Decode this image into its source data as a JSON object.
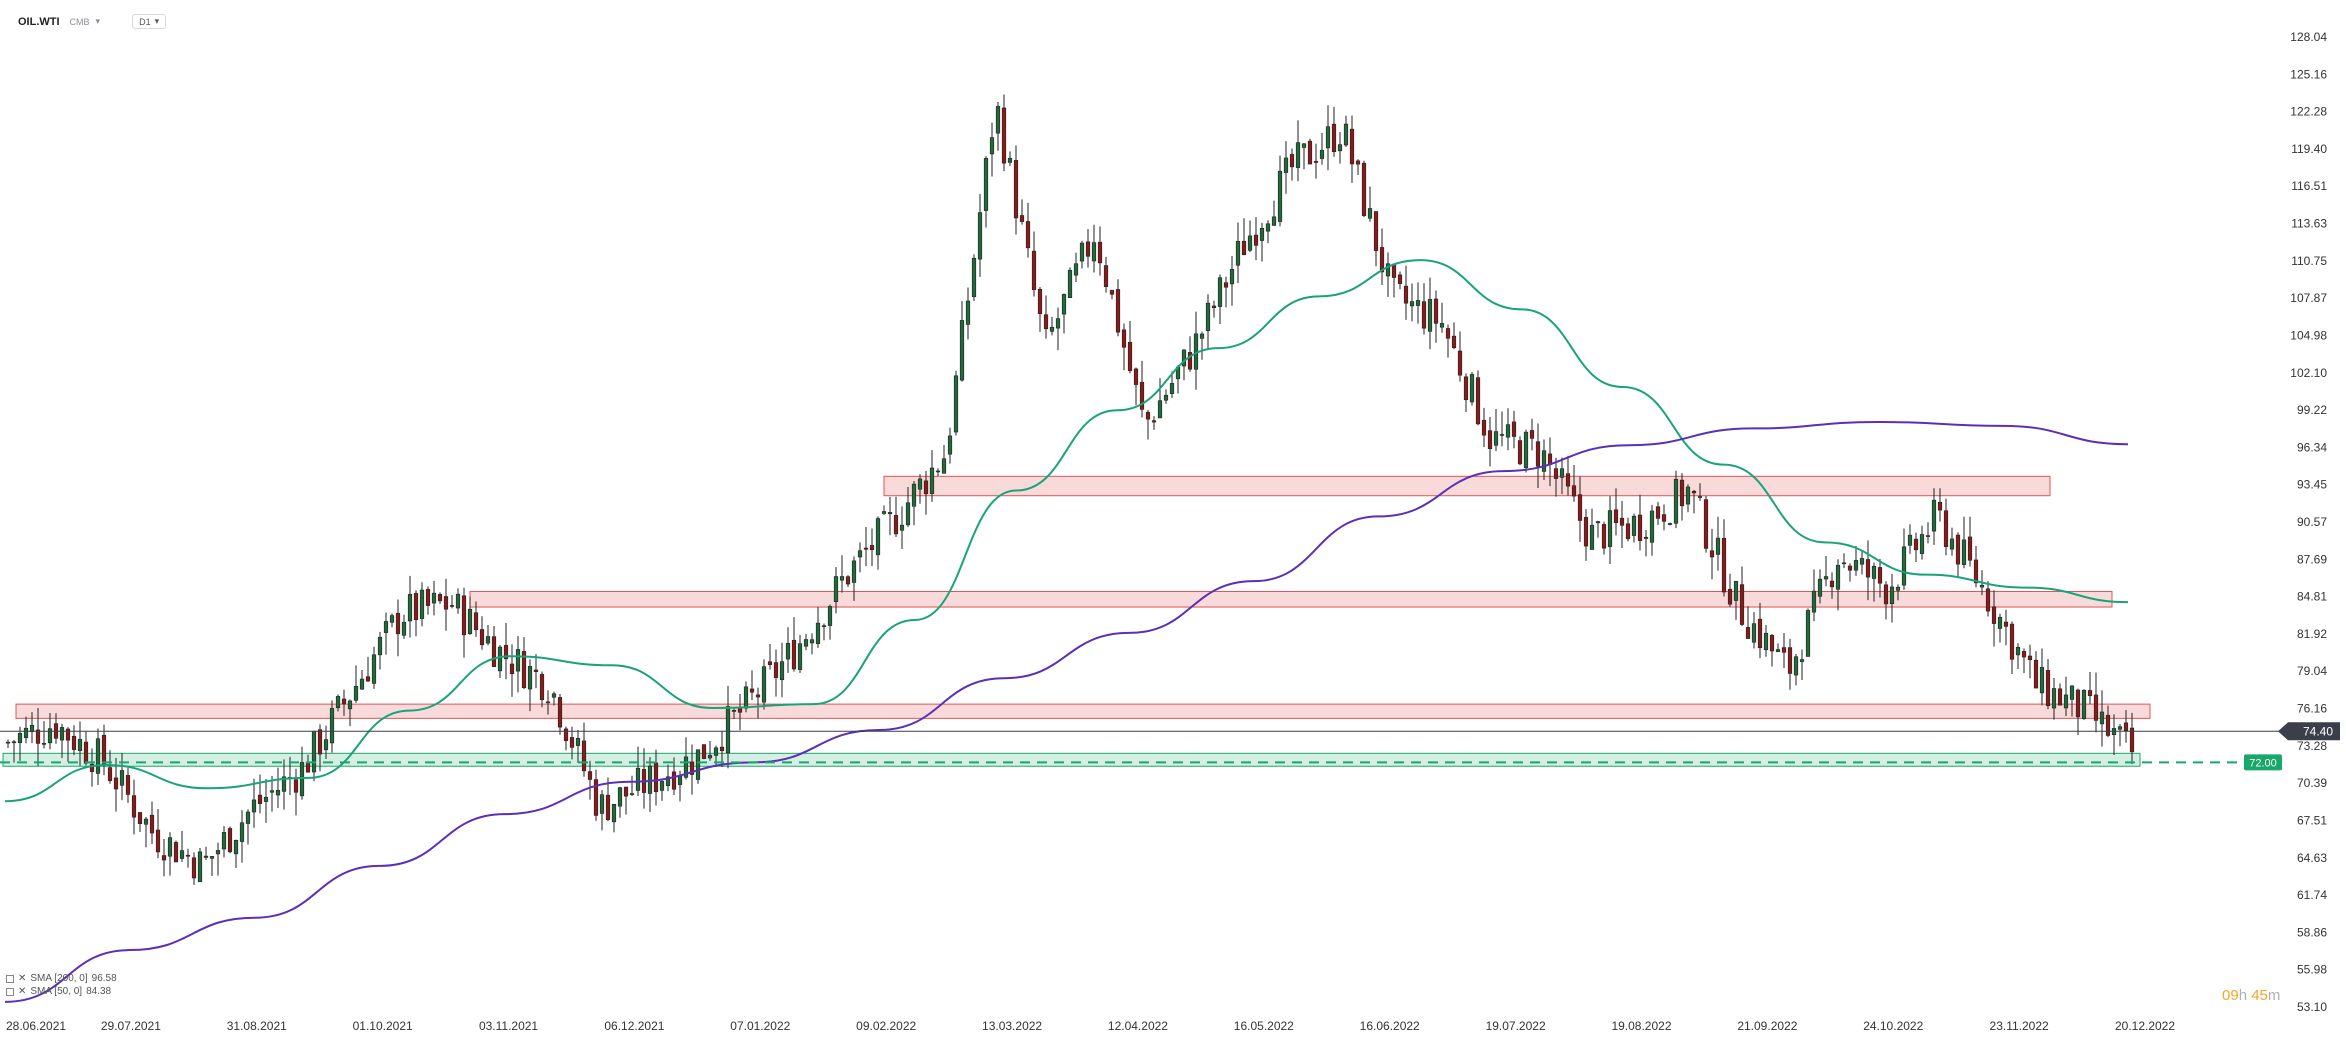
{
  "header": {
    "symbol": "OIL.WTI",
    "source": "CMB",
    "timeframe": "D1"
  },
  "legend": [
    {
      "label": "SMA [200, 0]",
      "value": "96.58",
      "color": "#5b2fb8"
    },
    {
      "label": "SMA [50, 0]",
      "value": "84.38",
      "color": "#1aa37a"
    }
  ],
  "timer": {
    "hours": "09",
    "h": "h",
    "minutes": "45",
    "m": "m"
  },
  "colors": {
    "bull": "#1f6b3a",
    "bear": "#8b1a1a",
    "sma50": "#1aa37a",
    "sma200": "#5b2fb8",
    "resistance": "#e05555",
    "support": "#18a86b",
    "price_tag": "#3a3f4a"
  },
  "chart_data": {
    "type": "candlestick",
    "ylim": [
      53.1,
      131.0
    ],
    "y_ticks": [
      "128.04",
      "125.16",
      "122.28",
      "119.40",
      "116.51",
      "113.63",
      "110.75",
      "107.87",
      "104.98",
      "102.10",
      "99.22",
      "96.34",
      "93.45",
      "90.57",
      "87.69",
      "84.81",
      "81.92",
      "79.04",
      "76.16",
      "73.28",
      "70.39",
      "67.51",
      "64.63",
      "61.74",
      "58.86",
      "55.98",
      "53.10"
    ],
    "x_ticks": [
      "28.06.2021",
      "29.07.2021",
      "31.08.2021",
      "01.10.2021",
      "03.11.2021",
      "06.12.2021",
      "07.01.2022",
      "09.02.2022",
      "13.03.2022",
      "12.04.2022",
      "16.05.2022",
      "16.06.2022",
      "19.07.2022",
      "19.08.2022",
      "21.09.2022",
      "24.10.2022",
      "23.11.2022",
      "20.12.2022"
    ],
    "last_price": "74.40",
    "support_level": "72.00",
    "zones": [
      {
        "kind": "resistance",
        "from": "31.08.2021",
        "to": "23.11.2022",
        "low": 75.4,
        "high": 76.5
      },
      {
        "kind": "resistance",
        "from": "01.10.2021",
        "to": "23.11.2022",
        "low": 84.0,
        "high": 85.2
      },
      {
        "kind": "resistance",
        "from": "09.02.2022",
        "to": "24.10.2022",
        "low": 92.6,
        "high": 94.1
      },
      {
        "kind": "support",
        "from": "28.06.2021",
        "to": "23.11.2022",
        "low": 71.7,
        "high": 72.7
      }
    ],
    "close_path": [
      {
        "d": "28.06.2021",
        "v": 73.5
      },
      {
        "d": "07.2021a",
        "v": 75.0
      },
      {
        "d": "29.07.2021",
        "v": 72.0
      },
      {
        "d": "08.2021a",
        "v": 66.5
      },
      {
        "d": "08.2021b",
        "v": 64.0
      },
      {
        "d": "31.08.2021",
        "v": 68.5
      },
      {
        "d": "09.2021a",
        "v": 71.5
      },
      {
        "d": "01.10.2021",
        "v": 77.5
      },
      {
        "d": "10.2021a",
        "v": 83.5
      },
      {
        "d": "10.2021b",
        "v": 84.3
      },
      {
        "d": "03.11.2021",
        "v": 80.5
      },
      {
        "d": "11.2021a",
        "v": 78.0
      },
      {
        "d": "11.2021b",
        "v": 68.5
      },
      {
        "d": "06.12.2021",
        "v": 70.5
      },
      {
        "d": "12.2021a",
        "v": 72.5
      },
      {
        "d": "12.2021b",
        "v": 76.5
      },
      {
        "d": "07.01.2022",
        "v": 81.0
      },
      {
        "d": "01.2022a",
        "v": 86.5
      },
      {
        "d": "09.02.2022",
        "v": 91.0
      },
      {
        "d": "02.2022a",
        "v": 96.0
      },
      {
        "d": "03.2022a",
        "v": 123.0
      },
      {
        "d": "13.03.2022",
        "v": 104.0
      },
      {
        "d": "03.2022b",
        "v": 113.0
      },
      {
        "d": "12.04.2022",
        "v": 98.0
      },
      {
        "d": "04.2022a",
        "v": 104.0
      },
      {
        "d": "16.05.2022",
        "v": 112.0
      },
      {
        "d": "05.2022a",
        "v": 118.0
      },
      {
        "d": "06.2022a",
        "v": 121.0
      },
      {
        "d": "16.06.2022",
        "v": 108.0
      },
      {
        "d": "06.2022b",
        "v": 106.0
      },
      {
        "d": "07.2022a",
        "v": 97.0
      },
      {
        "d": "19.07.2022",
        "v": 96.0
      },
      {
        "d": "07.2022b",
        "v": 89.5
      },
      {
        "d": "19.08.2022",
        "v": 90.5
      },
      {
        "d": "08.2022a",
        "v": 93.0
      },
      {
        "d": "09.2022a",
        "v": 84.0
      },
      {
        "d": "21.09.2022",
        "v": 79.0
      },
      {
        "d": "10.2022a",
        "v": 88.0
      },
      {
        "d": "24.10.2022",
        "v": 85.5
      },
      {
        "d": "11.2022a",
        "v": 91.0
      },
      {
        "d": "11.2022b",
        "v": 85.0
      },
      {
        "d": "23.11.2022",
        "v": 78.0
      },
      {
        "d": "12.2022a",
        "v": 76.0
      },
      {
        "d": "12.2022b",
        "v": 72.5
      }
    ],
    "sma50": [
      {
        "d": "28.06.2021",
        "v": 69.0
      },
      {
        "d": "29.07.2021",
        "v": 71.8
      },
      {
        "d": "31.08.2021",
        "v": 70.0
      },
      {
        "d": "01.10.2021",
        "v": 70.8
      },
      {
        "d": "10.2021",
        "v": 76.0
      },
      {
        "d": "03.11.2021",
        "v": 80.2
      },
      {
        "d": "11.2021",
        "v": 79.5
      },
      {
        "d": "06.12.2021",
        "v": 76.2
      },
      {
        "d": "07.01.2022",
        "v": 76.5
      },
      {
        "d": "09.02.2022",
        "v": 83.0
      },
      {
        "d": "13.03.2022",
        "v": 93.0
      },
      {
        "d": "12.04.2022",
        "v": 99.2
      },
      {
        "d": "16.05.2022",
        "v": 104.0
      },
      {
        "d": "06.2022",
        "v": 108.0
      },
      {
        "d": "16.06.2022",
        "v": 110.8
      },
      {
        "d": "19.07.2022",
        "v": 107.0
      },
      {
        "d": "08.2022",
        "v": 101.0
      },
      {
        "d": "19.08.2022",
        "v": 95.0
      },
      {
        "d": "21.09.2022",
        "v": 89.0
      },
      {
        "d": "24.10.2022",
        "v": 86.5
      },
      {
        "d": "23.11.2022",
        "v": 85.5
      },
      {
        "d": "12.2022",
        "v": 84.38
      }
    ],
    "sma200": [
      {
        "d": "28.06.2021",
        "v": 53.5
      },
      {
        "d": "29.07.2021",
        "v": 57.5
      },
      {
        "d": "31.08.2021",
        "v": 60.0
      },
      {
        "d": "01.10.2021",
        "v": 64.0
      },
      {
        "d": "03.11.2021",
        "v": 68.0
      },
      {
        "d": "06.12.2021",
        "v": 70.5
      },
      {
        "d": "07.01.2022",
        "v": 72.0
      },
      {
        "d": "09.02.2022",
        "v": 74.5
      },
      {
        "d": "13.03.2022",
        "v": 78.5
      },
      {
        "d": "12.04.2022",
        "v": 82.0
      },
      {
        "d": "16.05.2022",
        "v": 86.0
      },
      {
        "d": "16.06.2022",
        "v": 91.0
      },
      {
        "d": "19.07.2022",
        "v": 94.5
      },
      {
        "d": "19.08.2022",
        "v": 96.5
      },
      {
        "d": "21.09.2022",
        "v": 97.8
      },
      {
        "d": "24.10.2022",
        "v": 98.3
      },
      {
        "d": "23.11.2022",
        "v": 98.0
      },
      {
        "d": "12.2022",
        "v": 96.58
      }
    ]
  }
}
